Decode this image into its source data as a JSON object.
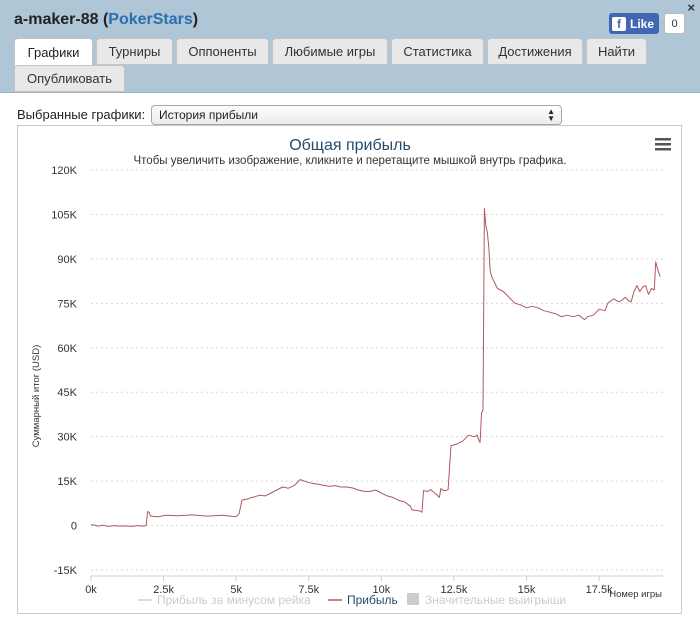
{
  "window": {
    "player": "a-maker-88",
    "site": "PokerStars",
    "close_glyph": "×",
    "fb_like_label": "Like",
    "fb_count": "0"
  },
  "tabs": [
    {
      "label": "Графики",
      "active": true
    },
    {
      "label": "Турниры",
      "active": false
    },
    {
      "label": "Оппоненты",
      "active": false
    },
    {
      "label": "Любимые игры",
      "active": false
    },
    {
      "label": "Статистика",
      "active": false
    },
    {
      "label": "Достижения",
      "active": false
    },
    {
      "label": "Найти",
      "active": false
    },
    {
      "label": "Опубликовать",
      "active": false
    }
  ],
  "graph_selector": {
    "label": "Выбранные графики:",
    "selected": "История прибыли"
  },
  "icons": {
    "menu": "hamburger-menu-icon",
    "select": "select-arrows-icon",
    "close": "close-icon",
    "facebook": "facebook-icon"
  },
  "colors": {
    "header_bg": "#aec6d6",
    "title_color": "#274b6d",
    "profit_line": "#b0585c",
    "legend_inactive": "#cccccc",
    "grid": "#d8d8d8"
  },
  "chart_data": {
    "type": "line",
    "title": "Общая прибыль",
    "subtitle": "Чтобы увеличить изображение, кликните и перетащите мышкой внутрь графика.",
    "ylabel": "Суммарный итог (USD)",
    "xlabel": "Номер игры",
    "x_ticks": [
      "0k",
      "2.5k",
      "5k",
      "7.5k",
      "10k",
      "12.5k",
      "15k",
      "17.5k"
    ],
    "x_tick_values": [
      0,
      2500,
      5000,
      7500,
      10000,
      12500,
      15000,
      17500
    ],
    "y_ticks": [
      "-15K",
      "0",
      "15K",
      "30K",
      "45K",
      "60K",
      "75K",
      "90K",
      "105K",
      "120K"
    ],
    "y_tick_values": [
      -15000,
      0,
      15000,
      30000,
      45000,
      60000,
      75000,
      90000,
      105000,
      120000
    ],
    "xlim": [
      0,
      19700
    ],
    "ylim": [
      -15000,
      120000
    ],
    "grid": true,
    "legend_position": "bottom-center",
    "legend": [
      {
        "name": "Прибыль за минусом рейка",
        "active": false
      },
      {
        "name": "Прибыль",
        "active": true
      },
      {
        "name": "Значительные выигрыши",
        "active": false
      }
    ],
    "series": [
      {
        "name": "Прибыль",
        "x": [
          0,
          100,
          250,
          400,
          600,
          800,
          1000,
          1200,
          1400,
          1600,
          1800,
          1900,
          1950,
          2000,
          2050,
          2300,
          2600,
          3000,
          3500,
          4000,
          4500,
          5000,
          5050,
          5100,
          5200,
          5400,
          5500,
          5600,
          5800,
          6000,
          6200,
          6400,
          6600,
          6800,
          7000,
          7200,
          7300,
          7400,
          7600,
          7800,
          8000,
          8200,
          8400,
          8600,
          8800,
          9000,
          9200,
          9400,
          9600,
          9800,
          10000,
          10200,
          10400,
          10600,
          10800,
          11000,
          11050,
          11100,
          11300,
          11400,
          11450,
          11600,
          11700,
          11750,
          11800,
          12000,
          12050,
          12100,
          12200,
          12300,
          12400,
          12600,
          12800,
          13000,
          13200,
          13300,
          13350,
          13400,
          13450,
          13500,
          13550,
          13600,
          13650,
          13700,
          13750,
          13800,
          13900,
          14000,
          14200,
          14400,
          14600,
          14800,
          15000,
          15200,
          15400,
          15600,
          15800,
          16000,
          16200,
          16400,
          16600,
          16800,
          17000,
          17100,
          17300,
          17500,
          17700,
          17800,
          18000,
          18200,
          18400,
          18500,
          18600,
          18700,
          18800,
          18900,
          19000,
          19100,
          19200,
          19300,
          19400,
          19450,
          19500,
          19600
        ],
        "y": [
          300,
          200,
          -200,
          100,
          -300,
          0,
          -200,
          -100,
          -300,
          0,
          -200,
          0,
          4700,
          4500,
          3200,
          3000,
          3500,
          3300,
          3600,
          3200,
          3500,
          3000,
          3500,
          4000,
          8600,
          9000,
          9400,
          9600,
          10200,
          10000,
          11000,
          12000,
          13000,
          12600,
          13500,
          15500,
          15200,
          14800,
          14300,
          14000,
          13600,
          13200,
          13500,
          13000,
          13000,
          12700,
          12000,
          11600,
          11500,
          12000,
          11000,
          10000,
          9500,
          8500,
          8000,
          6500,
          5400,
          5200,
          5000,
          4500,
          11800,
          11500,
          12200,
          11600,
          11400,
          9500,
          12500,
          12000,
          11800,
          12100,
          27000,
          27500,
          28500,
          30500,
          30000,
          30500,
          29000,
          28000,
          38000,
          39000,
          107000,
          101000,
          99000,
          94000,
          86000,
          84000,
          82000,
          80000,
          79000,
          77000,
          75000,
          74500,
          73500,
          74000,
          73500,
          72500,
          72000,
          71500,
          70500,
          71000,
          70500,
          71000,
          69500,
          70500,
          71000,
          73000,
          72500,
          75000,
          76500,
          75500,
          77000,
          76000,
          75500,
          79000,
          81000,
          79000,
          80500,
          81000,
          78000,
          80000,
          79500,
          89000,
          87000,
          84000
        ]
      }
    ]
  }
}
